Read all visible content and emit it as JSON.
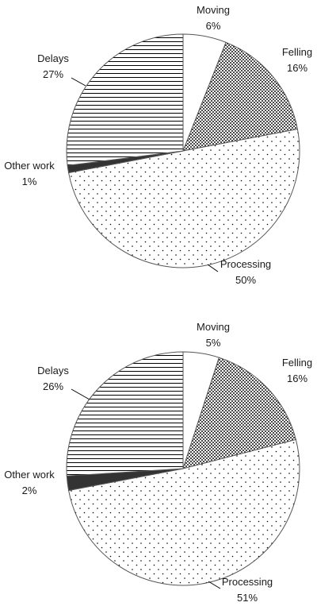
{
  "chart_data": [
    {
      "type": "pie",
      "categories": [
        "Moving",
        "Felling",
        "Processing",
        "Other work",
        "Delays"
      ],
      "values": [
        6,
        16,
        50,
        1,
        27
      ],
      "labels": [
        {
          "name": "Moving",
          "pct": "6%"
        },
        {
          "name": "Felling",
          "pct": "16%"
        },
        {
          "name": "Processing",
          "pct": "50%"
        },
        {
          "name": "Other work",
          "pct": "1%"
        },
        {
          "name": "Delays",
          "pct": "27%"
        }
      ],
      "patterns": [
        "blank",
        "dense-dots",
        "sparse-dots",
        "solid-dark",
        "horizontal-lines"
      ],
      "colors": {
        "outline": "#555555",
        "solid": "#333333",
        "pattern": "#000000"
      }
    },
    {
      "type": "pie",
      "categories": [
        "Moving",
        "Felling",
        "Processing",
        "Other work",
        "Delays"
      ],
      "values": [
        5,
        16,
        51,
        2,
        26
      ],
      "labels": [
        {
          "name": "Moving",
          "pct": "5%"
        },
        {
          "name": "Felling",
          "pct": "16%"
        },
        {
          "name": "Processing",
          "pct": "51%"
        },
        {
          "name": "Other work",
          "pct": "2%"
        },
        {
          "name": "Delays",
          "pct": "26%"
        }
      ],
      "patterns": [
        "blank",
        "dense-dots",
        "sparse-dots",
        "solid-dark",
        "horizontal-lines"
      ],
      "colors": {
        "outline": "#555555",
        "solid": "#333333",
        "pattern": "#000000"
      }
    }
  ]
}
